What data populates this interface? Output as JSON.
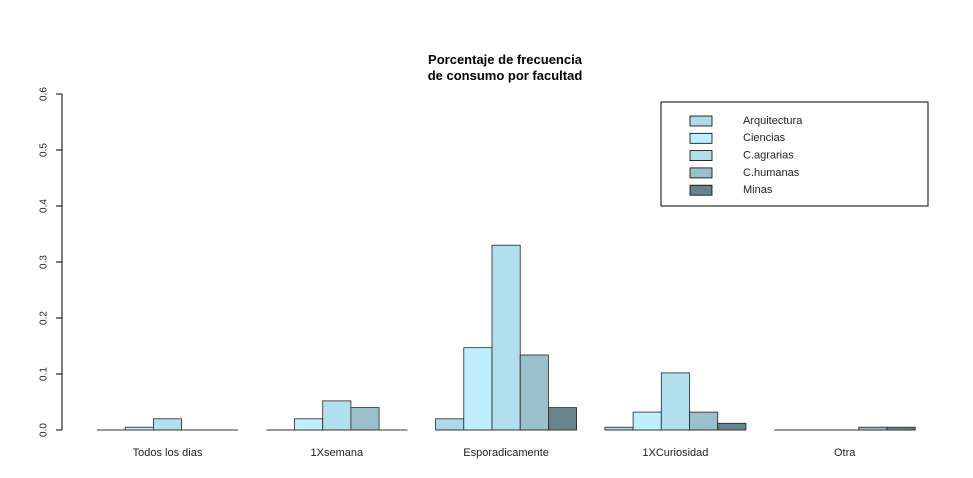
{
  "chart_data": {
    "type": "bar",
    "title_lines": [
      "Porcentaje de frecuencia",
      "de consumo por facultad"
    ],
    "xlabel": "",
    "ylabel": "",
    "ylim": [
      0,
      0.6
    ],
    "y_ticks": [
      "0.0",
      "0.1",
      "0.2",
      "0.3",
      "0.4",
      "0.5",
      "0.6"
    ],
    "categories": [
      "Todos los dias",
      "1Xsemana",
      "Esporadicamente",
      "1XCuriosidad",
      "Otra"
    ],
    "series": [
      {
        "name": "Arquitectura",
        "color": "#add8e6",
        "values": [
          0.0,
          0.0,
          0.02,
          0.005,
          0.0
        ]
      },
      {
        "name": "Ciencias",
        "color": "#bfefff",
        "values": [
          0.005,
          0.02,
          0.147,
          0.032,
          0.0
        ]
      },
      {
        "name": "C.agrarias",
        "color": "#b2dfee",
        "values": [
          0.02,
          0.052,
          0.33,
          0.102,
          0.0
        ]
      },
      {
        "name": "C.humanas",
        "color": "#9ac0cd",
        "values": [
          0.0,
          0.04,
          0.134,
          0.032,
          0.005
        ]
      },
      {
        "name": "Minas",
        "color": "#68838b",
        "values": [
          0.0,
          0.0,
          0.04,
          0.012,
          0.005
        ]
      }
    ],
    "legend_position": "top-right",
    "grid": false
  }
}
